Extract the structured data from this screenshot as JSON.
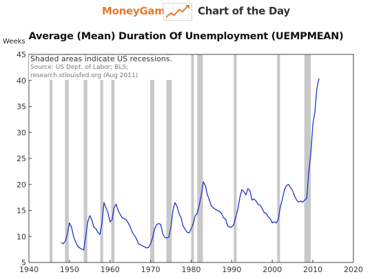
{
  "header": {
    "brand": "MoneyGame",
    "tagline": "Chart of the Day",
    "accent": "#e8792a"
  },
  "chart_data": {
    "type": "line",
    "title": "Average (Mean) Duration Of Unemployment (UEMPMEAN)",
    "ylabel": "Weeks",
    "xlabel": "",
    "xlim": [
      1940,
      2020
    ],
    "ylim": [
      5,
      45
    ],
    "x_ticks": [
      1940,
      1950,
      1960,
      1970,
      1980,
      1990,
      2000,
      2010,
      2020
    ],
    "y_ticks": [
      5,
      10,
      15,
      20,
      25,
      30,
      35,
      40,
      45
    ],
    "grid": false,
    "line_color": "#2233cc",
    "recession_color": "#c8c8c8",
    "note": "Shaded areas indicate US recessions.",
    "source_lines": [
      "Source: US Dept. of Labor; BLS;",
      "research.stlouisfed.org (Aug 2011)"
    ],
    "recessions": [
      [
        1945.1,
        1945.8
      ],
      [
        1948.9,
        1949.8
      ],
      [
        1953.5,
        1954.4
      ],
      [
        1957.6,
        1958.3
      ],
      [
        1960.3,
        1961.1
      ],
      [
        1969.9,
        1970.9
      ],
      [
        1973.9,
        1975.2
      ],
      [
        1980.0,
        1980.5
      ],
      [
        1981.5,
        1982.9
      ],
      [
        1990.5,
        1991.2
      ],
      [
        2001.2,
        2001.9
      ],
      [
        2007.9,
        2009.5
      ]
    ],
    "series": [
      {
        "x": [
          1948.0,
          1948.5,
          1949.0,
          1949.5,
          1950.0,
          1950.5,
          1951.0,
          1951.5,
          1952.0,
          1952.5,
          1953.0,
          1953.5,
          1954.0,
          1954.5,
          1955.0,
          1955.5,
          1956.0,
          1956.5,
          1957.0,
          1957.5,
          1958.0,
          1958.5,
          1959.0,
          1959.5,
          1960.0,
          1960.5,
          1961.0,
          1961.5,
          1962.0,
          1962.5,
          1963.0,
          1963.5,
          1964.0,
          1964.5,
          1965.0,
          1965.5,
          1966.0,
          1966.5,
          1967.0,
          1967.5,
          1968.0,
          1968.5,
          1969.0,
          1969.5,
          1970.0,
          1970.5,
          1971.0,
          1971.5,
          1972.0,
          1972.5,
          1973.0,
          1973.5,
          1974.0,
          1974.5,
          1975.0,
          1975.5,
          1976.0,
          1976.5,
          1977.0,
          1977.5,
          1978.0,
          1978.5,
          1979.0,
          1979.5,
          1980.0,
          1980.5,
          1981.0,
          1981.5,
          1982.0,
          1982.5,
          1983.0,
          1983.5,
          1984.0,
          1984.5,
          1985.0,
          1985.5,
          1986.0,
          1986.5,
          1987.0,
          1987.5,
          1988.0,
          1988.5,
          1989.0,
          1989.5,
          1990.0,
          1990.5,
          1991.0,
          1991.5,
          1992.0,
          1992.5,
          1993.0,
          1993.5,
          1994.0,
          1994.5,
          1995.0,
          1995.5,
          1996.0,
          1996.5,
          1997.0,
          1997.5,
          1998.0,
          1998.5,
          1999.0,
          1999.5,
          2000.0,
          2000.5,
          2001.0,
          2001.5,
          2002.0,
          2002.5,
          2003.0,
          2003.5,
          2004.0,
          2004.5,
          2005.0,
          2005.5,
          2006.0,
          2006.5,
          2007.0,
          2007.5,
          2008.0,
          2008.5,
          2009.0,
          2009.5,
          2010.0,
          2010.5,
          2011.0,
          2011.5
        ],
        "values": [
          8.8,
          8.6,
          9.2,
          10.5,
          12.6,
          11.8,
          10.0,
          9.0,
          8.2,
          7.8,
          7.6,
          7.4,
          10.0,
          12.8,
          14.0,
          13.2,
          11.8,
          11.5,
          10.8,
          10.4,
          12.5,
          16.5,
          15.5,
          14.5,
          12.8,
          13.2,
          15.5,
          16.2,
          15.0,
          14.2,
          13.6,
          13.4,
          13.2,
          12.6,
          11.8,
          10.8,
          10.2,
          9.6,
          8.6,
          8.4,
          8.2,
          8.0,
          7.8,
          7.9,
          8.6,
          9.8,
          11.5,
          12.3,
          12.5,
          12.3,
          10.5,
          9.8,
          9.7,
          9.9,
          11.8,
          15.0,
          16.5,
          15.8,
          14.4,
          13.6,
          12.0,
          11.4,
          10.8,
          10.7,
          11.5,
          12.4,
          14.0,
          14.4,
          16.0,
          18.0,
          20.5,
          19.8,
          18.0,
          17.0,
          15.8,
          15.5,
          15.2,
          15.0,
          14.8,
          14.4,
          13.6,
          13.3,
          12.0,
          11.8,
          11.8,
          12.3,
          13.8,
          15.2,
          17.5,
          19.0,
          18.6,
          18.0,
          19.2,
          18.8,
          17.0,
          17.2,
          16.8,
          16.2,
          16.0,
          15.4,
          14.6,
          14.4,
          13.8,
          13.4,
          12.6,
          12.8,
          12.6,
          13.3,
          15.8,
          17.2,
          19.0,
          19.8,
          20.0,
          19.4,
          18.8,
          17.8,
          17.0,
          16.6,
          16.8,
          16.6,
          17.0,
          17.4,
          22.5,
          26.0,
          31.5,
          34.0,
          38.5,
          40.3
        ]
      }
    ]
  }
}
